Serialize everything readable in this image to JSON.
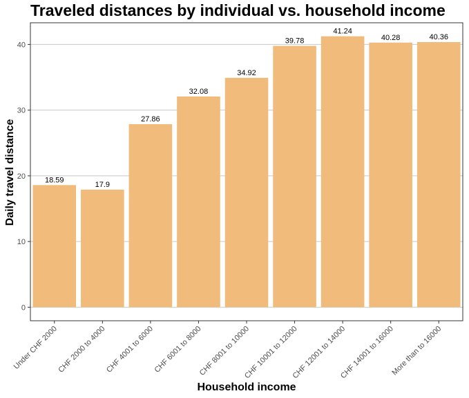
{
  "chart_data": {
    "type": "bar",
    "title": "Traveled distances by individual vs. household income",
    "xlabel": "Household income",
    "ylabel": "Daily travel distance",
    "categories": [
      "Under CHF 2000",
      "CHF 2000 to 4000",
      "CHF 4001 to 6000",
      "CHF 6001 to 8000",
      "CHF 8001 to 10000",
      "CHF 10001 to 12000",
      "CHF 12001 to 14000",
      "CHF 14001 to 16000",
      "More than to 16000"
    ],
    "values": [
      18.59,
      17.9,
      27.86,
      32.08,
      34.92,
      39.78,
      41.24,
      40.28,
      40.36
    ],
    "value_labels": [
      "18.59",
      "17.9",
      "27.86",
      "32.08",
      "34.92",
      "39.78",
      "41.24",
      "40.28",
      "40.36"
    ],
    "yticks": [
      0,
      10,
      20,
      30,
      40
    ],
    "ytick_labels": [
      "0",
      "10",
      "20",
      "30",
      "40"
    ],
    "ylim": [
      -2.06,
      43.3
    ],
    "grid": true,
    "bar_color": "#F0BB7B",
    "grid_color": "#C8C8C8"
  }
}
